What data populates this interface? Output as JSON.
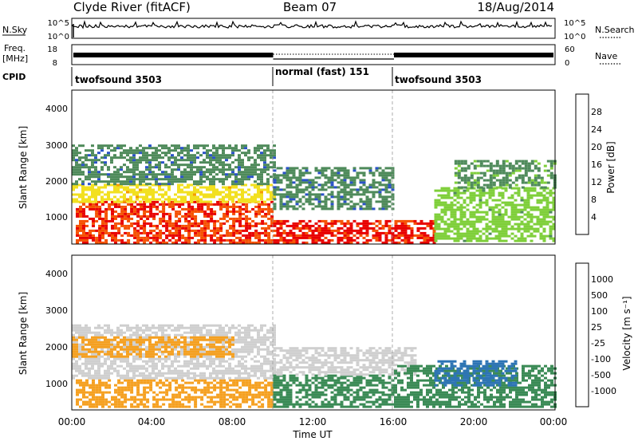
{
  "header": {
    "station": "Clyde River (fitACF)",
    "beam": "Beam 07",
    "date": "18/Aug/2014"
  },
  "top_panels": {
    "nsky": {
      "left_label": "N.Sky",
      "left_tick_top": "10^5",
      "left_tick_bottom": "10^0",
      "right_tick_top": "10^5",
      "right_tick_bottom": "10^0",
      "right_label": "N.Search",
      "right_legend_style": "dotted"
    },
    "freq": {
      "left_label_line1": "Freq.",
      "left_label_line2": "[MHz]",
      "left_tick_top": "18",
      "left_tick_bottom": "8",
      "right_tick_top": "60",
      "right_tick_bottom": "0",
      "right_label": "Nave",
      "right_legend_style": "dotted"
    },
    "cpid": {
      "label": "CPID",
      "segments": [
        {
          "label": "twofsound 3503",
          "start": 0,
          "end": 10
        },
        {
          "label": "normal (fast) 151",
          "start": 10,
          "end": 16
        },
        {
          "label": "twofsound 3503",
          "start": 16,
          "end": 24
        }
      ]
    }
  },
  "power_panel": {
    "ylabel": "Slant Range [km]",
    "yticks": [
      "1000",
      "2000",
      "3000",
      "4000"
    ],
    "colorbar_label": "Power [dB]",
    "colorbar_ticks": [
      "4",
      "8",
      "12",
      "16",
      "20",
      "24",
      "28"
    ],
    "colorbar_colors": [
      "#0000ee",
      "#2a52c8",
      "#4e8a5a",
      "#7fcf3a",
      "#f2e020",
      "#f59a00",
      "#f55000",
      "#e80000"
    ]
  },
  "velocity_panel": {
    "ylabel": "Slant Range [km]",
    "yticks": [
      "1000",
      "2000",
      "3000",
      "4000"
    ],
    "colorbar_label": "Velocity [m s⁻¹]",
    "colorbar_ticks": [
      "1000",
      "500",
      "100",
      "25",
      "-25",
      "-100",
      "-500",
      "-1000"
    ],
    "colorbar_colors": [
      "#1e3cd0",
      "#2d74b5",
      "#3a8a55",
      "#4fbf3a",
      "#cfcfcf",
      "#f5d020",
      "#f5a020",
      "#f07010",
      "#e80000"
    ]
  },
  "xaxis": {
    "label": "Time UT",
    "ticks": [
      "00:00",
      "04:00",
      "08:00",
      "12:00",
      "16:00",
      "20:00",
      "00:00"
    ]
  },
  "chart_data": [
    {
      "type": "heatmap",
      "title": "Clyde River (fitACF) Beam 07 18/Aug/2014",
      "xlabel": "Time UT",
      "ylabel": "Slant Range [km]",
      "xlim": [
        0,
        24
      ],
      "ylim": [
        180,
        4500
      ],
      "colorbar": "Power [dB]",
      "clim": [
        0,
        30
      ],
      "mode_change_hours": [
        10,
        16
      ],
      "features": [
        {
          "t0": 0.2,
          "t1": 10,
          "r0": 250,
          "r1": 1400,
          "value": 26
        },
        {
          "t0": 0,
          "t1": 10,
          "r0": 1400,
          "r1": 1900,
          "value": 17
        },
        {
          "t0": 0,
          "t1": 10,
          "r0": 1900,
          "r1": 3000,
          "value": 9
        },
        {
          "t0": 10,
          "t1": 18,
          "r0": 250,
          "r1": 900,
          "value": 27
        },
        {
          "t0": 10,
          "t1": 16,
          "r0": 1200,
          "r1": 2400,
          "value": 9
        },
        {
          "t0": 18,
          "t1": 24,
          "r0": 300,
          "r1": 1800,
          "value": 13
        },
        {
          "t0": 19,
          "t1": 24,
          "r0": 1800,
          "r1": 2600,
          "value": 10
        }
      ]
    },
    {
      "type": "heatmap",
      "title": "Clyde River (fitACF) Beam 07 18/Aug/2014",
      "xlabel": "Time UT",
      "ylabel": "Slant Range [km]",
      "xlim": [
        0,
        24
      ],
      "ylim": [
        180,
        4500
      ],
      "colorbar": "Velocity [m s⁻¹]",
      "clim": [
        -1000,
        1000
      ],
      "mode_change_hours": [
        10,
        16
      ],
      "features": [
        {
          "t0": 0.2,
          "t1": 10,
          "r0": 300,
          "r1": 1100,
          "value": -300
        },
        {
          "t0": 0,
          "t1": 10,
          "r0": 1100,
          "r1": 2600,
          "value": 0
        },
        {
          "t0": 0,
          "t1": 8,
          "r0": 1700,
          "r1": 2300,
          "value": -150
        },
        {
          "t0": 10,
          "t1": 16,
          "r0": 300,
          "r1": 1200,
          "value": 100
        },
        {
          "t0": 10,
          "t1": 17,
          "r0": 1200,
          "r1": 2000,
          "value": 0
        },
        {
          "t0": 16,
          "t1": 24,
          "r0": 300,
          "r1": 1500,
          "value": 150
        },
        {
          "t0": 18,
          "t1": 22,
          "r0": 900,
          "r1": 1600,
          "value": 700
        }
      ]
    }
  ]
}
